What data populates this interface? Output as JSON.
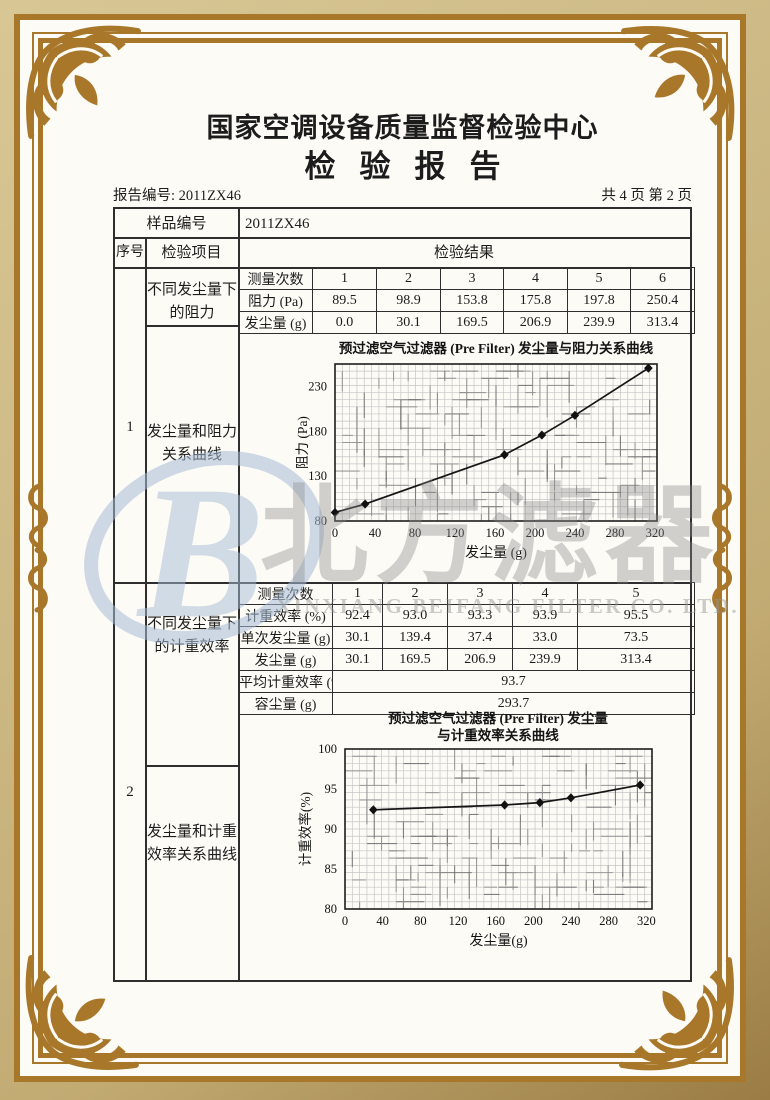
{
  "colors": {
    "frame_gold": "#a8772a",
    "paper": "#fcfbf6",
    "outer_tan": "#c8b37e",
    "ink": "#1c1c1c",
    "watermark_blue": "#a8bed8",
    "watermark_gray": "#8c8c8c"
  },
  "header": {
    "org_title": "国家空调设备质量监督检验中心",
    "report_title": "检验报告",
    "report_no": "报告编号: 2011ZX46",
    "page_info": "共 4 页 第 2 页"
  },
  "sample": {
    "label": "样品编号",
    "value": "2011ZX46"
  },
  "table_head": {
    "seq": "序号",
    "item": "检验项目",
    "result": "检验结果"
  },
  "row1": {
    "seq": "1",
    "item_top": "不同发尘量下的阻力",
    "item_bottom": "发尘量和阻力关系曲线",
    "measure_table": {
      "rows": [
        {
          "label": "测量次数",
          "values": [
            "1",
            "2",
            "3",
            "4",
            "5",
            "6"
          ]
        },
        {
          "label": "阻力 (Pa)",
          "values": [
            "89.5",
            "98.9",
            "153.8",
            "175.8",
            "197.8",
            "250.4"
          ]
        },
        {
          "label": "发尘量 (g)",
          "values": [
            "0.0",
            "30.1",
            "169.5",
            "206.9",
            "239.9",
            "313.4"
          ]
        }
      ]
    }
  },
  "row2": {
    "seq": "2",
    "item_top": "不同发尘量下的计重效率",
    "item_bottom": "发尘量和计重效率关系曲线",
    "measure_table": {
      "rows": [
        {
          "label": "测量次数",
          "values": [
            "1",
            "2",
            "3",
            "4",
            "5"
          ]
        },
        {
          "label": "计重效率 (%)",
          "values": [
            "92.4",
            "93.0",
            "93.3",
            "93.9",
            "95.5"
          ]
        },
        {
          "label": "单次发尘量 (g)",
          "values": [
            "30.1",
            "139.4",
            "37.4",
            "33.0",
            "73.5"
          ]
        },
        {
          "label": "发尘量 (g)",
          "values": [
            "30.1",
            "169.5",
            "206.9",
            "239.9",
            "313.4"
          ]
        }
      ],
      "summary": [
        {
          "label": "平均计重效率 (%)",
          "value": "93.7"
        },
        {
          "label": "容尘量 (g)",
          "value": "293.7"
        }
      ]
    }
  },
  "chart_data": [
    {
      "type": "line",
      "title_lines": [
        "预过滤空气过滤器 (Pre Filter) 发尘量与阻力关系曲线"
      ],
      "xlabel": "发尘量 (g)",
      "ylabel": "阻力 (Pa)",
      "x": [
        0,
        30.1,
        169.5,
        206.9,
        239.9,
        313.4
      ],
      "y": [
        89.5,
        98.9,
        153.8,
        175.8,
        197.8,
        250.4
      ],
      "xlim": [
        0,
        322
      ],
      "ylim": [
        80,
        255
      ],
      "xticks": [
        0,
        40,
        80,
        120,
        160,
        200,
        240,
        280,
        320
      ],
      "yticks": [
        80,
        130,
        180,
        230
      ],
      "grid": true,
      "legend": "none",
      "marker": "diamond"
    },
    {
      "type": "line",
      "title_lines": [
        "预过滤空气过滤器 (Pre Filter) 发尘量",
        "与计重效率关系曲线"
      ],
      "xlabel": "发尘量(g)",
      "ylabel": "计重效率(%)",
      "x": [
        30.1,
        169.5,
        206.9,
        239.9,
        313.4
      ],
      "y": [
        92.4,
        93.0,
        93.3,
        93.9,
        95.5
      ],
      "xlim": [
        0,
        326
      ],
      "ylim": [
        80,
        100
      ],
      "xticks": [
        0,
        40,
        80,
        120,
        160,
        200,
        240,
        280,
        320
      ],
      "yticks": [
        80,
        85,
        90,
        95,
        100
      ],
      "grid": true,
      "legend": "none",
      "marker": "diamond"
    }
  ],
  "watermark": {
    "logo_letter": "B",
    "cn": "北方滤器",
    "en": "XINXIANG BEIFANG FILTER CO. LTD."
  }
}
